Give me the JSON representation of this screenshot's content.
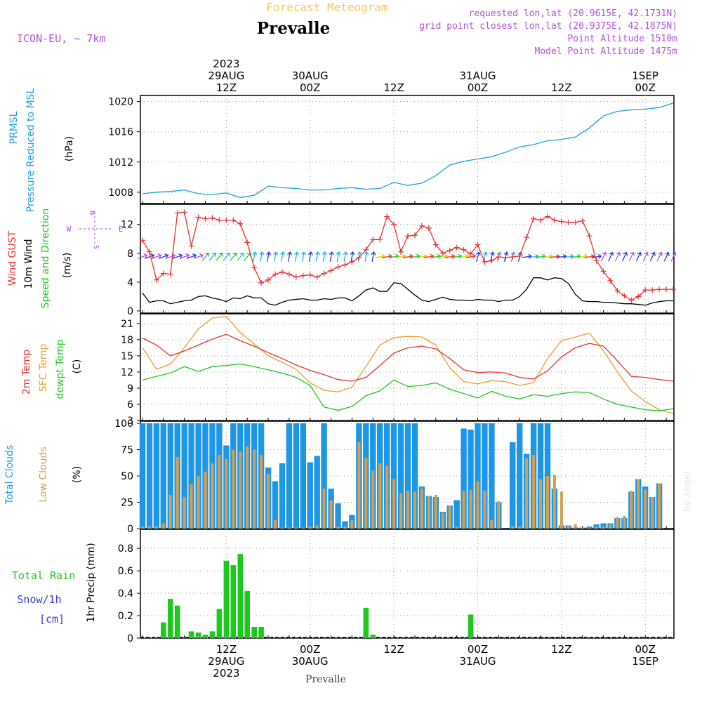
{
  "header": {
    "title_top": "Forecast Meteogram",
    "location": "Prevalle",
    "model": "ICON-EU, ~ 7km",
    "requested": "requested lon,lat (20.9615E, 42.1731N)",
    "grid_point": "grid point closest lon,lat (20.9375E, 42.1875N)",
    "point_altitude": "Point Altitude 1510m",
    "model_altitude": "Model Point Altitude 1475m",
    "watermark": "by Angel",
    "footer": "Prevalle"
  },
  "colors": {
    "pressure": "#1ea0e6",
    "gust": "#e63232",
    "wind": "#000000",
    "t2m": "#e63232",
    "tsfc": "#e6a032",
    "dewpt": "#1ec81e",
    "total_clouds": "#1e96e6",
    "low_clouds": "#d2a050",
    "rain": "#1ec81e",
    "header_purple": "#b450dc",
    "header_orange": "#f0c864"
  },
  "time_axis": {
    "top_labels": [
      {
        "t": 12,
        "lines": [
          "2023",
          "29AUG",
          "12Z"
        ]
      },
      {
        "t": 24,
        "lines": [
          "30AUG",
          "00Z"
        ]
      },
      {
        "t": 36,
        "lines": [
          "12Z"
        ]
      },
      {
        "t": 48,
        "lines": [
          "31AUG",
          "00Z"
        ]
      },
      {
        "t": 60,
        "lines": [
          "12Z"
        ]
      },
      {
        "t": 72,
        "lines": [
          "1SEP",
          "00Z"
        ]
      }
    ],
    "bottom_labels": [
      {
        "t": 12,
        "lines": [
          "12Z",
          "29AUG",
          "2023"
        ]
      },
      {
        "t": 24,
        "lines": [
          "00Z",
          "30AUG"
        ]
      },
      {
        "t": 36,
        "lines": [
          "12Z"
        ]
      },
      {
        "t": 48,
        "lines": [
          "00Z",
          "31AUG"
        ]
      },
      {
        "t": 60,
        "lines": [
          "12Z"
        ]
      },
      {
        "t": 72,
        "lines": [
          "00Z",
          "1SEP"
        ]
      }
    ]
  },
  "chart_data": [
    {
      "type": "line",
      "panel": "pressure",
      "ylabels": [
        "PRMSL",
        "Pressure Reduced to MSL",
        "(hPa)"
      ],
      "ylim": [
        1006.5,
        1020.8
      ],
      "yticks": [
        1008,
        1012,
        1016,
        1020
      ],
      "series": [
        {
          "name": "PRMSL",
          "x": [
            0,
            2,
            4,
            6,
            8,
            10,
            12,
            14,
            16,
            18,
            20,
            22,
            24,
            26,
            28,
            30,
            32,
            34,
            36,
            38,
            40,
            42,
            44,
            46,
            48,
            50,
            52,
            54,
            56,
            58,
            60,
            62,
            64,
            66,
            68,
            70,
            72,
            74,
            76
          ],
          "y": [
            1007.8,
            1008.0,
            1008.1,
            1008.3,
            1007.8,
            1007.7,
            1007.9,
            1007.3,
            1007.6,
            1008.8,
            1008.6,
            1008.5,
            1008.3,
            1008.3,
            1008.5,
            1008.6,
            1008.4,
            1008.5,
            1009.3,
            1008.9,
            1009.2,
            1010.2,
            1011.6,
            1012.1,
            1012.4,
            1012.7,
            1013.3,
            1014.0,
            1014.3,
            1014.8,
            1015.0,
            1015.3,
            1016.5,
            1018.1,
            1018.7,
            1018.9,
            1019.0,
            1019.2,
            1019.8
          ]
        }
      ]
    },
    {
      "type": "line",
      "panel": "wind",
      "ylabels": [
        "Wind GUST",
        "10m Wind",
        "Speed and Direction",
        "(m/s)"
      ],
      "compass": [
        "N",
        "S",
        "W",
        "E"
      ],
      "ylim": [
        -0.3,
        14.8
      ],
      "yticks": [
        0,
        4,
        8,
        12
      ],
      "series": [
        {
          "name": "Wind GUST",
          "x": [
            0,
            1,
            2,
            3,
            4,
            5,
            6,
            7,
            8,
            9,
            10,
            11,
            12,
            13,
            14,
            15,
            16,
            17,
            18,
            19,
            20,
            21,
            22,
            23,
            24,
            25,
            26,
            27,
            28,
            29,
            30,
            31,
            32,
            33,
            34,
            35,
            36,
            37,
            38,
            39,
            40,
            41,
            42,
            43,
            44,
            45,
            46,
            47,
            48,
            49,
            50,
            51,
            52,
            53,
            54,
            55,
            56,
            57,
            58,
            59,
            60,
            61,
            62,
            63,
            64,
            65,
            66,
            67,
            68,
            69,
            70,
            71,
            72,
            73,
            74,
            75,
            76
          ],
          "y": [
            9.8,
            8.2,
            4.3,
            5.2,
            5.1,
            13.6,
            13.7,
            9.0,
            13.0,
            12.8,
            12.9,
            12.6,
            12.6,
            12.6,
            12.1,
            9.5,
            6.0,
            3.9,
            4.3,
            5.1,
            5.4,
            5.1,
            4.7,
            4.9,
            5.0,
            4.7,
            5.2,
            5.6,
            6.1,
            6.4,
            6.8,
            7.4,
            8.5,
            9.9,
            9.9,
            13.1,
            12.0,
            8.2,
            10.4,
            10.5,
            11.8,
            11.5,
            9.2,
            8.0,
            8.4,
            8.8,
            8.5,
            7.9,
            9.2,
            6.8,
            7.0,
            7.5,
            7.4,
            7.5,
            7.6,
            10.2,
            12.8,
            12.6,
            13.1,
            12.6,
            12.4,
            12.3,
            12.3,
            12.5,
            10.4,
            7.0,
            5.5,
            4.2,
            2.8,
            2.1,
            1.5,
            2.0,
            2.9,
            2.9,
            3.0,
            3.0,
            3.0
          ]
        },
        {
          "name": "10m Wind",
          "x": [
            0,
            1,
            2,
            3,
            4,
            5,
            6,
            7,
            8,
            9,
            10,
            11,
            12,
            13,
            14,
            15,
            16,
            17,
            18,
            19,
            20,
            21,
            22,
            23,
            24,
            25,
            26,
            27,
            28,
            29,
            30,
            31,
            32,
            33,
            34,
            35,
            36,
            37,
            38,
            39,
            40,
            41,
            42,
            43,
            44,
            45,
            46,
            47,
            48,
            49,
            50,
            51,
            52,
            53,
            54,
            55,
            56,
            57,
            58,
            59,
            60,
            61,
            62,
            63,
            64,
            65,
            66,
            67,
            68,
            69,
            70,
            71,
            72,
            73,
            74,
            75,
            76
          ],
          "y": [
            2.5,
            1.2,
            1.4,
            1.4,
            1.0,
            1.2,
            1.4,
            1.5,
            2.0,
            2.1,
            1.8,
            1.6,
            1.3,
            1.8,
            1.7,
            2.1,
            1.8,
            1.8,
            1.0,
            0.8,
            1.2,
            1.5,
            1.6,
            1.7,
            1.5,
            1.5,
            1.7,
            1.6,
            1.8,
            1.8,
            1.4,
            2.1,
            2.9,
            3.2,
            2.7,
            2.7,
            3.9,
            3.8,
            3.0,
            2.2,
            1.5,
            1.3,
            1.6,
            1.9,
            1.6,
            1.5,
            1.5,
            1.4,
            1.6,
            1.5,
            1.5,
            1.3,
            1.5,
            1.5,
            2.0,
            3.0,
            4.6,
            4.6,
            4.3,
            4.6,
            4.5,
            3.8,
            2.3,
            1.4,
            1.3,
            1.3,
            1.2,
            1.2,
            1.1,
            1.0,
            1.0,
            0.9,
            0.8,
            1.1,
            1.3,
            1.4,
            1.4
          ]
        }
      ]
    },
    {
      "type": "line",
      "panel": "temperature",
      "ylabels": [
        "2m Temp",
        "SFC Temp",
        "dewpt Temp",
        "(C)"
      ],
      "ylim": [
        3,
        22.8
      ],
      "yticks": [
        3,
        6,
        9,
        12,
        15,
        18,
        21
      ],
      "series": [
        {
          "name": "2m Temp",
          "x": [
            0,
            2,
            4,
            6,
            8,
            10,
            12,
            14,
            16,
            18,
            20,
            22,
            24,
            26,
            28,
            30,
            32,
            34,
            36,
            38,
            40,
            42,
            44,
            46,
            48,
            50,
            52,
            54,
            56,
            58,
            60,
            62,
            64,
            66,
            68,
            70,
            72,
            74,
            76
          ],
          "y": [
            18.3,
            17.0,
            15.0,
            15.9,
            17.0,
            18.1,
            19.0,
            17.8,
            16.8,
            15.6,
            14.5,
            13.3,
            12.3,
            11.5,
            10.6,
            10.3,
            11.0,
            13.2,
            15.5,
            16.5,
            16.8,
            16.3,
            14.5,
            12.4,
            11.9,
            12.0,
            11.8,
            11.0,
            10.7,
            12.2,
            14.8,
            16.5,
            17.3,
            16.8,
            14.1,
            11.2,
            11.0,
            10.6,
            10.3
          ]
        },
        {
          "name": "SFC Temp",
          "x": [
            0,
            2,
            4,
            6,
            8,
            10,
            12,
            14,
            16,
            18,
            20,
            22,
            24,
            26,
            28,
            30,
            32,
            34,
            36,
            38,
            40,
            42,
            44,
            46,
            48,
            50,
            52,
            54,
            56,
            58,
            60,
            62,
            64,
            66,
            68,
            70,
            72,
            74,
            76
          ],
          "y": [
            16.5,
            12.5,
            13.5,
            16.5,
            20.0,
            22.0,
            22.3,
            19.3,
            17.2,
            15.0,
            13.8,
            12.5,
            10.0,
            8.6,
            8.3,
            9.2,
            13.0,
            17.0,
            18.4,
            18.6,
            18.5,
            17.0,
            12.8,
            10.2,
            9.8,
            10.4,
            10.2,
            9.5,
            10.0,
            14.5,
            17.8,
            18.5,
            19.2,
            16.0,
            12.0,
            8.5,
            6.5,
            5.0,
            4.3
          ]
        },
        {
          "name": "dewpt Temp",
          "x": [
            0,
            2,
            4,
            6,
            8,
            10,
            12,
            14,
            16,
            18,
            20,
            22,
            24,
            26,
            28,
            30,
            32,
            34,
            36,
            38,
            40,
            42,
            44,
            46,
            48,
            50,
            52,
            54,
            56,
            58,
            60,
            62,
            64,
            66,
            68,
            70,
            72,
            74,
            76
          ],
          "y": [
            10.5,
            11.2,
            11.8,
            13.0,
            12.1,
            13.0,
            13.2,
            13.5,
            13.0,
            12.4,
            11.8,
            11.0,
            9.5,
            5.5,
            4.9,
            5.6,
            7.6,
            8.5,
            10.5,
            9.3,
            9.5,
            10.0,
            8.8,
            8.0,
            7.2,
            8.4,
            7.5,
            7.0,
            7.8,
            7.5,
            8.0,
            8.3,
            8.2,
            7.0,
            6.0,
            5.5,
            5.0,
            4.8,
            5.2
          ]
        }
      ]
    },
    {
      "type": "bar",
      "panel": "clouds",
      "ylabels": [
        "Total Clouds",
        "Low Clouds",
        "(%)"
      ],
      "ylim": [
        0,
        102
      ],
      "yticks": [
        0,
        25,
        50,
        75,
        100
      ],
      "x": [
        0,
        1,
        2,
        3,
        4,
        5,
        6,
        7,
        8,
        9,
        10,
        11,
        12,
        13,
        14,
        15,
        16,
        17,
        18,
        19,
        20,
        21,
        22,
        23,
        24,
        25,
        26,
        27,
        28,
        29,
        30,
        31,
        32,
        33,
        34,
        35,
        36,
        37,
        38,
        39,
        40,
        41,
        42,
        43,
        44,
        45,
        46,
        47,
        48,
        49,
        50,
        51,
        52,
        53,
        54,
        55,
        56,
        57,
        58,
        59,
        60,
        61,
        62,
        63,
        64,
        65,
        66,
        67,
        68,
        69,
        70,
        71,
        72,
        73,
        74,
        75,
        76
      ],
      "series": [
        {
          "name": "Total Clouds",
          "values": [
            100,
            100,
            100,
            100,
            100,
            100,
            100,
            100,
            100,
            100,
            100,
            100,
            79,
            100,
            100,
            100,
            100,
            100,
            58,
            45,
            62,
            100,
            100,
            100,
            63,
            69,
            100,
            38,
            24,
            7,
            13,
            100,
            100,
            100,
            100,
            100,
            100,
            100,
            100,
            100,
            40,
            31,
            30,
            16,
            22,
            27,
            95,
            94,
            100,
            100,
            100,
            25,
            0,
            82,
            100,
            71,
            100,
            100,
            100,
            38,
            3,
            3,
            1,
            1,
            2,
            4,
            5,
            5,
            10,
            10,
            35,
            47,
            40,
            30,
            43,
            0,
            0
          ]
        },
        {
          "name": "Low Clouds",
          "values": [
            2,
            2,
            2,
            5,
            32,
            68,
            30,
            42,
            50,
            54,
            62,
            70,
            66,
            75,
            73,
            78,
            75,
            70,
            52,
            8,
            1,
            1,
            1,
            1,
            2,
            3,
            38,
            27,
            2,
            2,
            8,
            82,
            67,
            55,
            62,
            60,
            47,
            34,
            36,
            35,
            38,
            31,
            32,
            15,
            22,
            2,
            36,
            37,
            45,
            36,
            8,
            26,
            0,
            2,
            2,
            67,
            70,
            47,
            50,
            51,
            35,
            3,
            4,
            1,
            1,
            2,
            2,
            4,
            11,
            12,
            36,
            47,
            37,
            30,
            43,
            0,
            0
          ]
        }
      ]
    },
    {
      "type": "bar",
      "panel": "precip",
      "ylabels": [
        "Total Rain",
        "Snow/1h",
        "[cm]",
        "1hr Precip (mm)"
      ],
      "ylim": [
        0,
        0.97
      ],
      "yticks": [
        0,
        0.2,
        0.4,
        0.6,
        0.8
      ],
      "ytick_labels": [
        "0",
        "0.2",
        "0.4",
        "0.6",
        "0.8"
      ],
      "x": [
        3,
        4,
        5,
        6,
        7,
        8,
        9,
        10,
        11,
        12,
        13,
        14,
        15,
        16,
        17,
        18,
        32,
        33,
        47
      ],
      "series": [
        {
          "name": "Total Rain",
          "values": [
            0.14,
            0.35,
            0.29,
            0.0,
            0.06,
            0.05,
            0.03,
            0.06,
            0.26,
            0.69,
            0.65,
            0.75,
            0.42,
            0.1,
            0.1,
            0.0,
            0.27,
            0.03,
            0.21
          ]
        }
      ]
    }
  ]
}
